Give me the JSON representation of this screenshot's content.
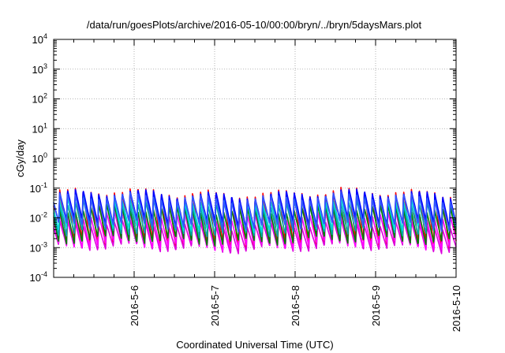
{
  "chart_data": {
    "type": "line",
    "title": "/data/run/goesPlots/archive/2016-05-10/00:00/bryn/../bryn/5daysMars.plot",
    "xlabel": "Coordinated Universal Time (UTC)",
    "ylabel": "cGy/day",
    "xlim": [
      "2016-05-05 00:00",
      "2016-05-10 00:00"
    ],
    "yscale": "log",
    "ylim": [
      0.0001,
      10000
    ],
    "grid": true,
    "x_ticks": [
      "2016-5-6",
      "2016-5-7",
      "2016-5-8",
      "2016-5-9",
      "2016-5-10"
    ],
    "y_ticks": [
      {
        "base": "10",
        "exp": "-4"
      },
      {
        "base": "10",
        "exp": "-3"
      },
      {
        "base": "10",
        "exp": "-2"
      },
      {
        "base": "10",
        "exp": "-1"
      },
      {
        "base": "10",
        "exp": "0"
      },
      {
        "base": "10",
        "exp": "1"
      },
      {
        "base": "10",
        "exp": "2"
      },
      {
        "base": "10",
        "exp": "3"
      },
      {
        "base": "10",
        "exp": "4"
      }
    ],
    "pattern": {
      "cycles_per_day": 10.3,
      "description_free": true
    },
    "series": [
      {
        "color": "#ff0000",
        "peak": 0.075,
        "trough": 0.0012
      },
      {
        "color": "#dd00dd",
        "peak": 0.006,
        "trough": 0.0009
      },
      {
        "color": "#ff00ff",
        "peak": 0.012,
        "trough": 0.0011
      },
      {
        "color": "#008000",
        "peak": 0.02,
        "trough": 0.0016
      },
      {
        "color": "#00aaaa",
        "peak": 0.035,
        "trough": 0.003
      },
      {
        "color": "#00dddd",
        "peak": 0.045,
        "trough": 0.0045
      },
      {
        "color": "#0000ff",
        "peak": 0.065,
        "trough": 0.0065
      },
      {
        "color": "#3355ff",
        "peak": 0.05,
        "trough": 0.005
      }
    ]
  }
}
